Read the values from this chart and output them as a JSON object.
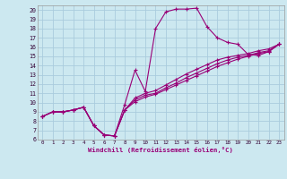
{
  "xlabel": "Windchill (Refroidissement éolien,°C)",
  "bg_color": "#cce8f0",
  "grid_color": "#aaccdd",
  "line_color": "#990077",
  "xlim": [
    -0.5,
    23.5
  ],
  "ylim": [
    6,
    20.5
  ],
  "yticks": [
    6,
    7,
    8,
    9,
    10,
    11,
    12,
    13,
    14,
    15,
    16,
    17,
    18,
    19,
    20
  ],
  "xticks": [
    0,
    1,
    2,
    3,
    4,
    5,
    6,
    7,
    8,
    9,
    10,
    11,
    12,
    13,
    14,
    15,
    16,
    17,
    18,
    19,
    20,
    21,
    22,
    23
  ],
  "curve1_x": [
    0,
    1,
    2,
    3,
    4,
    5,
    6,
    7,
    8,
    9,
    10,
    11,
    12,
    13,
    14,
    15,
    16,
    17,
    18,
    19,
    20,
    21,
    22,
    23
  ],
  "curve1_y": [
    8.5,
    9.0,
    9.0,
    9.2,
    9.5,
    7.5,
    6.5,
    6.4,
    9.8,
    13.5,
    11.2,
    18.0,
    19.8,
    20.1,
    20.1,
    20.2,
    18.2,
    17.0,
    16.5,
    16.3,
    15.2,
    15.1,
    15.5,
    16.3
  ],
  "curve2_x": [
    0,
    1,
    2,
    3,
    4,
    5,
    6,
    7,
    8,
    9,
    10,
    11,
    12,
    13,
    14,
    15,
    16,
    17,
    18,
    19,
    20,
    21,
    22,
    23
  ],
  "curve2_y": [
    8.5,
    9.0,
    9.0,
    9.2,
    9.5,
    7.5,
    6.5,
    6.4,
    9.2,
    10.5,
    11.0,
    11.3,
    11.9,
    12.5,
    13.1,
    13.6,
    14.1,
    14.6,
    14.9,
    15.1,
    15.3,
    15.6,
    15.8,
    16.3
  ],
  "curve3_x": [
    0,
    1,
    2,
    3,
    4,
    5,
    6,
    7,
    8,
    9,
    10,
    11,
    12,
    13,
    14,
    15,
    16,
    17,
    18,
    19,
    20,
    21,
    22,
    23
  ],
  "curve3_y": [
    8.5,
    9.0,
    9.0,
    9.2,
    9.5,
    7.5,
    6.5,
    6.4,
    9.2,
    10.3,
    10.8,
    11.0,
    11.6,
    12.1,
    12.7,
    13.2,
    13.7,
    14.2,
    14.6,
    14.9,
    15.1,
    15.4,
    15.6,
    16.3
  ],
  "curve4_x": [
    0,
    1,
    2,
    3,
    4,
    5,
    6,
    7,
    8,
    9,
    10,
    11,
    12,
    13,
    14,
    15,
    16,
    17,
    18,
    19,
    20,
    21,
    22,
    23
  ],
  "curve4_y": [
    8.5,
    9.0,
    9.0,
    9.2,
    9.5,
    7.5,
    6.5,
    6.4,
    9.2,
    10.1,
    10.6,
    10.9,
    11.4,
    11.9,
    12.4,
    12.9,
    13.4,
    13.9,
    14.3,
    14.7,
    15.0,
    15.3,
    15.5,
    16.3
  ]
}
